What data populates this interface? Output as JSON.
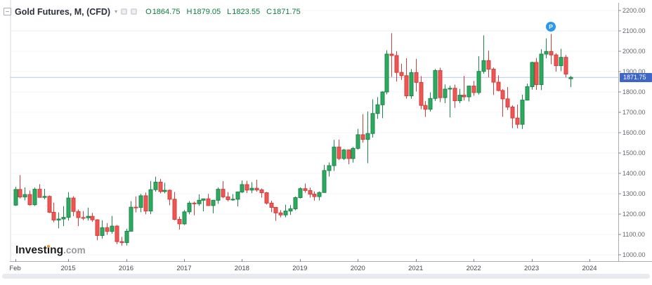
{
  "header": {
    "symbol_title": "Gold Futures, M, (CFD)",
    "caret": "▾",
    "ohlc": {
      "o_label": "O",
      "o_value": "1864.75",
      "h_label": "H",
      "h_value": "1879.05",
      "l_label": "L",
      "l_value": "1823.55",
      "c_label": "C",
      "c_value": "1871.75"
    }
  },
  "price_axis": {
    "ticks": [
      {
        "label": "2200.00",
        "value": 2200
      },
      {
        "label": "2100.00",
        "value": 2100
      },
      {
        "label": "2000.00",
        "value": 2000
      },
      {
        "label": "1900.00",
        "value": 1900
      },
      {
        "label": "1800.00",
        "value": 1800
      },
      {
        "label": "1700.00",
        "value": 1700
      },
      {
        "label": "1600.00",
        "value": 1600
      },
      {
        "label": "1500.00",
        "value": 1500
      },
      {
        "label": "1400.00",
        "value": 1400
      },
      {
        "label": "1300.00",
        "value": 1300
      },
      {
        "label": "1200.00",
        "value": 1200
      },
      {
        "label": "1100.00",
        "value": 1100
      },
      {
        "label": "1000.00",
        "value": 1000
      }
    ],
    "current_price_label": "1871.75"
  },
  "time_axis": {
    "ticks": [
      {
        "label": "Feb",
        "month_index": 0
      },
      {
        "label": "2015",
        "month_index": 11
      },
      {
        "label": "2016",
        "month_index": 23
      },
      {
        "label": "2017",
        "month_index": 35
      },
      {
        "label": "2018",
        "month_index": 47
      },
      {
        "label": "2019",
        "month_index": 59
      },
      {
        "label": "2020",
        "month_index": 71
      },
      {
        "label": "2021",
        "month_index": 83
      },
      {
        "label": "2022",
        "month_index": 95
      },
      {
        "label": "2023",
        "month_index": 107
      },
      {
        "label": "2024",
        "month_index": 119
      }
    ]
  },
  "marker": {
    "label": "P",
    "month": "2023-05"
  },
  "logo": {
    "brand_start": "Invest",
    "brand_i": "i",
    "brand_end": "ng",
    "domain": ".com"
  },
  "colors": {
    "up_fill": "#2cab5e",
    "up_border": "#1d8549",
    "down_fill": "#ef5552",
    "down_border": "#d13f3c",
    "current_price_line": "#bcc9e8",
    "current_price_bg": "#3e66c9",
    "axis_line": "#a9adb3",
    "grid_faint": "#f4f6f9",
    "grid_visible": "#e9edf3",
    "ohlc_text": "#0e7c3e",
    "marker_blue": "#2b97ef",
    "logo_orange": "#f7941d"
  },
  "chart_data": {
    "type": "candlestick",
    "title": "Gold Futures, M, (CFD)",
    "x_unit": "month",
    "start": "2014-02",
    "end": "2023-09",
    "ylim": [
      1000,
      2200
    ],
    "grid": "horizontal-faint",
    "legend_position": "top-left",
    "current_price": 1871.75,
    "candle_format": [
      "month",
      "open",
      "high",
      "low",
      "close"
    ],
    "candles": [
      [
        "2014-02",
        1244,
        1334,
        1240,
        1321
      ],
      [
        "2014-03",
        1321,
        1392,
        1277,
        1284
      ],
      [
        "2014-04",
        1284,
        1331,
        1268,
        1296
      ],
      [
        "2014-05",
        1296,
        1316,
        1242,
        1246
      ],
      [
        "2014-06",
        1246,
        1330,
        1240,
        1322
      ],
      [
        "2014-07",
        1322,
        1347,
        1281,
        1282
      ],
      [
        "2014-08",
        1282,
        1324,
        1273,
        1287
      ],
      [
        "2014-09",
        1287,
        1292,
        1205,
        1209
      ],
      [
        "2014-10",
        1209,
        1256,
        1160,
        1171
      ],
      [
        "2014-11",
        1171,
        1208,
        1130,
        1176
      ],
      [
        "2014-12",
        1176,
        1239,
        1141,
        1184
      ],
      [
        "2015-01",
        1184,
        1308,
        1168,
        1279
      ],
      [
        "2015-02",
        1279,
        1288,
        1190,
        1213
      ],
      [
        "2015-03",
        1213,
        1223,
        1141,
        1183
      ],
      [
        "2015-04",
        1183,
        1215,
        1170,
        1182
      ],
      [
        "2015-05",
        1182,
        1232,
        1168,
        1189
      ],
      [
        "2015-06",
        1189,
        1206,
        1162,
        1172
      ],
      [
        "2015-07",
        1172,
        1175,
        1072,
        1095
      ],
      [
        "2015-08",
        1095,
        1170,
        1080,
        1133
      ],
      [
        "2015-09",
        1133,
        1156,
        1098,
        1115
      ],
      [
        "2015-10",
        1115,
        1191,
        1104,
        1141
      ],
      [
        "2015-11",
        1141,
        1146,
        1052,
        1065
      ],
      [
        "2015-12",
        1065,
        1088,
        1045,
        1060
      ],
      [
        "2016-01",
        1060,
        1128,
        1046,
        1116
      ],
      [
        "2016-02",
        1116,
        1264,
        1115,
        1234
      ],
      [
        "2016-03",
        1234,
        1287,
        1208,
        1233
      ],
      [
        "2016-04",
        1233,
        1299,
        1209,
        1290
      ],
      [
        "2016-05",
        1290,
        1306,
        1199,
        1215
      ],
      [
        "2016-06",
        1215,
        1362,
        1200,
        1320
      ],
      [
        "2016-07",
        1320,
        1384,
        1310,
        1357
      ],
      [
        "2016-08",
        1357,
        1373,
        1302,
        1311
      ],
      [
        "2016-09",
        1311,
        1354,
        1302,
        1317
      ],
      [
        "2016-10",
        1317,
        1321,
        1243,
        1273
      ],
      [
        "2016-11",
        1273,
        1309,
        1170,
        1174
      ],
      [
        "2016-12",
        1174,
        1188,
        1124,
        1152
      ],
      [
        "2017-01",
        1152,
        1220,
        1146,
        1211
      ],
      [
        "2017-02",
        1211,
        1264,
        1199,
        1254
      ],
      [
        "2017-03",
        1254,
        1261,
        1194,
        1251
      ],
      [
        "2017-04",
        1251,
        1297,
        1241,
        1268
      ],
      [
        "2017-05",
        1268,
        1276,
        1214,
        1275
      ],
      [
        "2017-06",
        1275,
        1299,
        1240,
        1242
      ],
      [
        "2017-07",
        1242,
        1270,
        1204,
        1268
      ],
      [
        "2017-08",
        1268,
        1331,
        1251,
        1322
      ],
      [
        "2017-09",
        1322,
        1362,
        1278,
        1285
      ],
      [
        "2017-10",
        1285,
        1308,
        1263,
        1271
      ],
      [
        "2017-11",
        1271,
        1298,
        1265,
        1273
      ],
      [
        "2017-12",
        1273,
        1309,
        1238,
        1309
      ],
      [
        "2018-01",
        1309,
        1365,
        1303,
        1345
      ],
      [
        "2018-02",
        1345,
        1364,
        1303,
        1318
      ],
      [
        "2018-03",
        1318,
        1357,
        1303,
        1327
      ],
      [
        "2018-04",
        1327,
        1369,
        1310,
        1319
      ],
      [
        "2018-05",
        1319,
        1326,
        1281,
        1305
      ],
      [
        "2018-06",
        1305,
        1309,
        1247,
        1254
      ],
      [
        "2018-07",
        1254,
        1266,
        1210,
        1233
      ],
      [
        "2018-08",
        1233,
        1235,
        1167,
        1206
      ],
      [
        "2018-09",
        1206,
        1220,
        1184,
        1196
      ],
      [
        "2018-10",
        1196,
        1246,
        1184,
        1215
      ],
      [
        "2018-11",
        1215,
        1244,
        1196,
        1226
      ],
      [
        "2018-12",
        1226,
        1287,
        1219,
        1281
      ],
      [
        "2019-01",
        1281,
        1331,
        1277,
        1325
      ],
      [
        "2019-02",
        1325,
        1350,
        1305,
        1316
      ],
      [
        "2019-03",
        1316,
        1330,
        1281,
        1298
      ],
      [
        "2019-04",
        1298,
        1311,
        1266,
        1286
      ],
      [
        "2019-05",
        1286,
        1311,
        1267,
        1306
      ],
      [
        "2019-06",
        1306,
        1442,
        1305,
        1414
      ],
      [
        "2019-07",
        1414,
        1454,
        1384,
        1438
      ],
      [
        "2019-08",
        1438,
        1565,
        1412,
        1529
      ],
      [
        "2019-09",
        1529,
        1566,
        1465,
        1473
      ],
      [
        "2019-10",
        1473,
        1520,
        1465,
        1515
      ],
      [
        "2019-11",
        1515,
        1517,
        1445,
        1473
      ],
      [
        "2019-12",
        1473,
        1530,
        1453,
        1523
      ],
      [
        "2020-01",
        1523,
        1619,
        1517,
        1590
      ],
      [
        "2020-02",
        1590,
        1691,
        1551,
        1567
      ],
      [
        "2020-03",
        1567,
        1704,
        1450,
        1596
      ],
      [
        "2020-04",
        1596,
        1764,
        1576,
        1694
      ],
      [
        "2020-05",
        1694,
        1775,
        1668,
        1737
      ],
      [
        "2020-06",
        1737,
        1804,
        1671,
        1800
      ],
      [
        "2020-07",
        1800,
        2005,
        1789,
        1986
      ],
      [
        "2020-08",
        1986,
        2089,
        1874,
        1979
      ],
      [
        "2020-09",
        1979,
        2001,
        1851,
        1896
      ],
      [
        "2020-10",
        1896,
        1939,
        1859,
        1880
      ],
      [
        "2020-11",
        1880,
        1966,
        1767,
        1781
      ],
      [
        "2020-12",
        1781,
        1912,
        1767,
        1895
      ],
      [
        "2021-01",
        1895,
        1963,
        1802,
        1847
      ],
      [
        "2021-02",
        1847,
        1878,
        1715,
        1734
      ],
      [
        "2021-03",
        1734,
        1756,
        1677,
        1715
      ],
      [
        "2021-04",
        1715,
        1798,
        1704,
        1768
      ],
      [
        "2021-05",
        1768,
        1913,
        1756,
        1905
      ],
      [
        "2021-06",
        1905,
        1919,
        1750,
        1772
      ],
      [
        "2021-07",
        1772,
        1837,
        1745,
        1814
      ],
      [
        "2021-08",
        1814,
        1831,
        1675,
        1818
      ],
      [
        "2021-09",
        1818,
        1836,
        1722,
        1757
      ],
      [
        "2021-10",
        1757,
        1815,
        1745,
        1784
      ],
      [
        "2021-11",
        1784,
        1879,
        1758,
        1776
      ],
      [
        "2021-12",
        1776,
        1820,
        1753,
        1829
      ],
      [
        "2022-01",
        1829,
        1854,
        1781,
        1797
      ],
      [
        "2022-02",
        1797,
        1976,
        1788,
        1901
      ],
      [
        "2022-03",
        1901,
        2078,
        1890,
        1954
      ],
      [
        "2022-04",
        1954,
        2003,
        1872,
        1912
      ],
      [
        "2022-05",
        1912,
        1920,
        1785,
        1848
      ],
      [
        "2022-06",
        1848,
        1882,
        1803,
        1807
      ],
      [
        "2022-07",
        1807,
        1814,
        1678,
        1766
      ],
      [
        "2022-08",
        1766,
        1824,
        1711,
        1726
      ],
      [
        "2022-09",
        1726,
        1735,
        1622,
        1672
      ],
      [
        "2022-10",
        1672,
        1738,
        1621,
        1641
      ],
      [
        "2022-11",
        1641,
        1786,
        1618,
        1760
      ],
      [
        "2022-12",
        1760,
        1841,
        1758,
        1826
      ],
      [
        "2023-01",
        1826,
        1949,
        1811,
        1945
      ],
      [
        "2023-02",
        1945,
        1967,
        1810,
        1836
      ],
      [
        "2023-03",
        1836,
        2010,
        1809,
        1986
      ],
      [
        "2023-04",
        1986,
        2063,
        1965,
        1999
      ],
      [
        "2023-05",
        1999,
        2085,
        1936,
        1982
      ],
      [
        "2023-06",
        1982,
        1990,
        1900,
        1929
      ],
      [
        "2023-07",
        1929,
        2012,
        1902,
        1970
      ],
      [
        "2023-08",
        1970,
        1982,
        1871,
        1888
      ],
      [
        "2023-09",
        1864.75,
        1879.05,
        1823.55,
        1871.75
      ]
    ]
  }
}
